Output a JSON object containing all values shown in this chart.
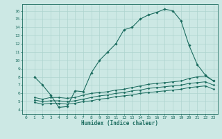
{
  "title": "",
  "xlabel": "Humidex (Indice chaleur)",
  "bg_color": "#cce8e4",
  "line_color": "#1a6b5e",
  "grid_color": "#aed4cf",
  "xlim": [
    -0.5,
    23.5
  ],
  "ylim": [
    3.5,
    16.8
  ],
  "xticks": [
    0,
    1,
    2,
    3,
    4,
    5,
    6,
    7,
    8,
    9,
    10,
    11,
    12,
    13,
    14,
    15,
    16,
    17,
    18,
    19,
    20,
    21,
    22,
    23
  ],
  "yticks": [
    4,
    5,
    6,
    7,
    8,
    9,
    10,
    11,
    12,
    13,
    14,
    15,
    16
  ],
  "line1_x": [
    1,
    2,
    3,
    4,
    5,
    6,
    7,
    8,
    9,
    10,
    11,
    12,
    13,
    14,
    15,
    16,
    17,
    18,
    19,
    20,
    21,
    22,
    23
  ],
  "line1_y": [
    8.0,
    7.0,
    5.8,
    4.3,
    4.4,
    6.3,
    6.2,
    8.5,
    10.0,
    11.0,
    12.0,
    13.7,
    14.0,
    15.0,
    15.5,
    15.8,
    16.2,
    16.0,
    14.8,
    11.8,
    9.5,
    8.2,
    7.5
  ],
  "line2_x": [
    1,
    2,
    3,
    4,
    5,
    6,
    7,
    8,
    9,
    10,
    11,
    12,
    13,
    14,
    15,
    16,
    17,
    18,
    19,
    20,
    21,
    22,
    23
  ],
  "line2_y": [
    5.5,
    5.3,
    5.5,
    5.5,
    5.4,
    5.5,
    5.8,
    6.0,
    6.1,
    6.2,
    6.4,
    6.5,
    6.7,
    6.9,
    7.1,
    7.2,
    7.3,
    7.4,
    7.5,
    7.8,
    8.0,
    8.1,
    7.5
  ],
  "line3_x": [
    1,
    2,
    3,
    4,
    5,
    6,
    7,
    8,
    9,
    10,
    11,
    12,
    13,
    14,
    15,
    16,
    17,
    18,
    19,
    20,
    21,
    22,
    23
  ],
  "line3_y": [
    5.2,
    5.0,
    5.1,
    5.1,
    5.0,
    5.1,
    5.3,
    5.5,
    5.7,
    5.8,
    6.0,
    6.1,
    6.3,
    6.4,
    6.6,
    6.7,
    6.8,
    6.9,
    7.0,
    7.2,
    7.3,
    7.4,
    7.0
  ],
  "line4_x": [
    1,
    2,
    3,
    4,
    5,
    6,
    7,
    8,
    9,
    10,
    11,
    12,
    13,
    14,
    15,
    16,
    17,
    18,
    19,
    20,
    21,
    22,
    23
  ],
  "line4_y": [
    4.9,
    4.7,
    4.8,
    4.8,
    4.7,
    4.8,
    5.0,
    5.1,
    5.3,
    5.4,
    5.6,
    5.7,
    5.8,
    6.0,
    6.1,
    6.2,
    6.3,
    6.4,
    6.5,
    6.7,
    6.8,
    6.9,
    6.5
  ]
}
